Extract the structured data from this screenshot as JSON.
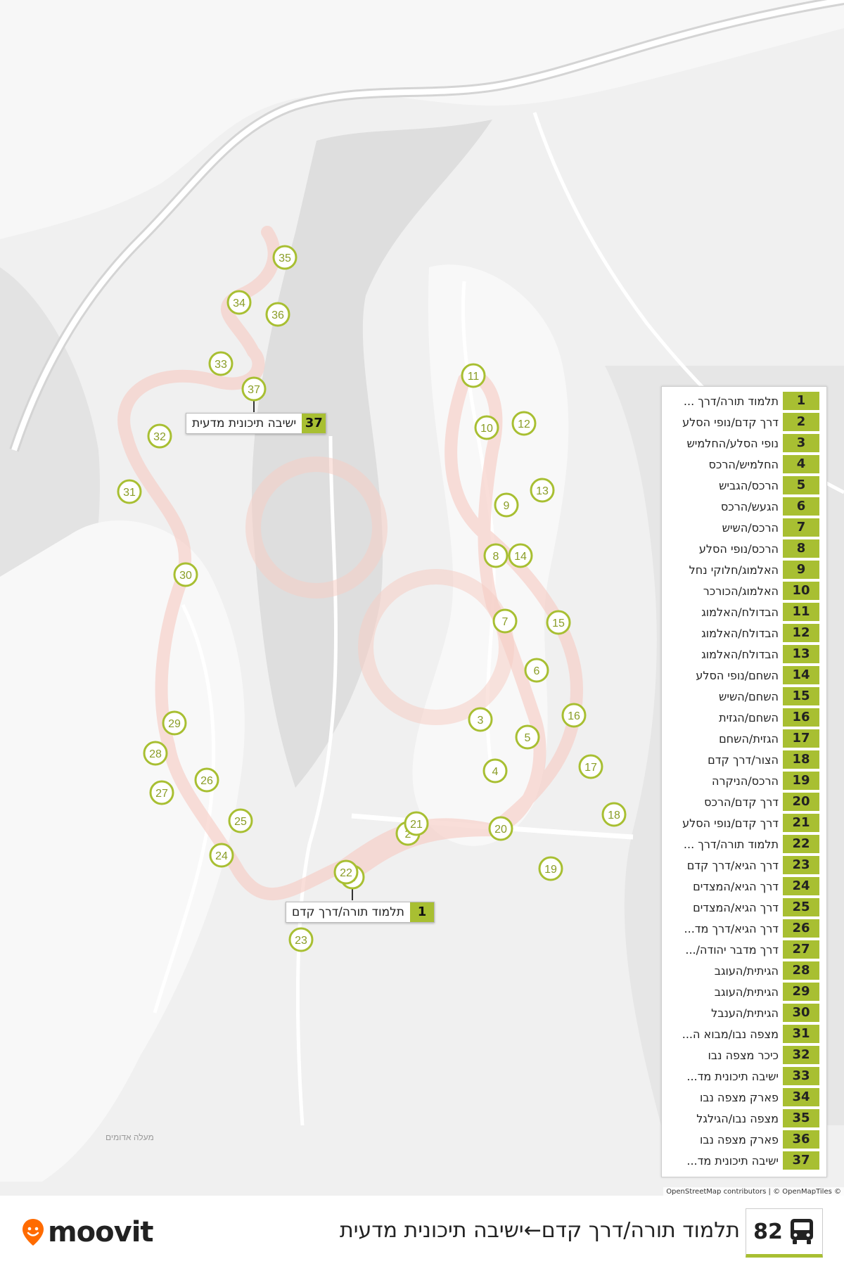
{
  "route": {
    "number": "82",
    "title": "תלמוד תורה/דרך קדם←ישיבה תיכונית מדעית"
  },
  "brand": {
    "name": "moovit"
  },
  "attribution": "OpenStreetMap contributors | © OpenMapTiles ©",
  "map_label": "מעלה אדומים",
  "colors": {
    "accent": "#a8bf32",
    "stop_stroke": "#a8bf32",
    "route_glow": "#f6c9c0"
  },
  "callouts": {
    "start": {
      "num": "1",
      "name": "תלמוד תורה/דרך קדם"
    },
    "end": {
      "num": "37",
      "name": "ישיבה תיכונית מדעית"
    }
  },
  "stops": [
    {
      "num": "1",
      "name": "תלמוד תורה/דרך ..."
    },
    {
      "num": "2",
      "name": "דרך קדם/נופי הסלע"
    },
    {
      "num": "3",
      "name": "נופי הסלע/החלמיש"
    },
    {
      "num": "4",
      "name": "החלמיש/הרכס"
    },
    {
      "num": "5",
      "name": "הרכס/הגביש"
    },
    {
      "num": "6",
      "name": "הגעש/הרכס"
    },
    {
      "num": "7",
      "name": "הרכס/השיש"
    },
    {
      "num": "8",
      "name": "הרכס/נופי הסלע"
    },
    {
      "num": "9",
      "name": "האלמוג/חלוקי נחל"
    },
    {
      "num": "10",
      "name": "האלמוג/הכורכר"
    },
    {
      "num": "11",
      "name": "הבדולח/האלמוג"
    },
    {
      "num": "12",
      "name": "הבדולח/האלמוג"
    },
    {
      "num": "13",
      "name": "הבדולח/האלמוג"
    },
    {
      "num": "14",
      "name": "השחם/נופי הסלע"
    },
    {
      "num": "15",
      "name": "השחם/השיש"
    },
    {
      "num": "16",
      "name": "השחם/הגזית"
    },
    {
      "num": "17",
      "name": "הגזית/השחם"
    },
    {
      "num": "18",
      "name": "הצור/דרך קדם"
    },
    {
      "num": "19",
      "name": "הרכס/הניקרה"
    },
    {
      "num": "20",
      "name": "דרך קדם/הרכס"
    },
    {
      "num": "21",
      "name": "דרך קדם/נופי הסלע"
    },
    {
      "num": "22",
      "name": "תלמוד תורה/דרך ..."
    },
    {
      "num": "23",
      "name": "דרך הגיא/דרך קדם"
    },
    {
      "num": "24",
      "name": "דרך הגיא/המצדים"
    },
    {
      "num": "25",
      "name": "דרך הגיא/המצדים"
    },
    {
      "num": "26",
      "name": "דרך הגיא/דרך מד..."
    },
    {
      "num": "27",
      "name": "דרך מדבר יהודה/..."
    },
    {
      "num": "28",
      "name": "הגיתית/העוגב"
    },
    {
      "num": "29",
      "name": "הגיתית/העוגב"
    },
    {
      "num": "30",
      "name": "הגיתית/הענבל"
    },
    {
      "num": "31",
      "name": "מצפה נבו/מבוא ה..."
    },
    {
      "num": "32",
      "name": "כיכר מצפה נבו"
    },
    {
      "num": "33",
      "name": "ישיבה תיכונית מד..."
    },
    {
      "num": "34",
      "name": "פארק מצפה נבו"
    },
    {
      "num": "35",
      "name": "מצפה נבו/הגילגל"
    },
    {
      "num": "36",
      "name": "פארק מצפה נבו"
    },
    {
      "num": "37",
      "name": "ישיבה תיכונית מד..."
    }
  ]
}
